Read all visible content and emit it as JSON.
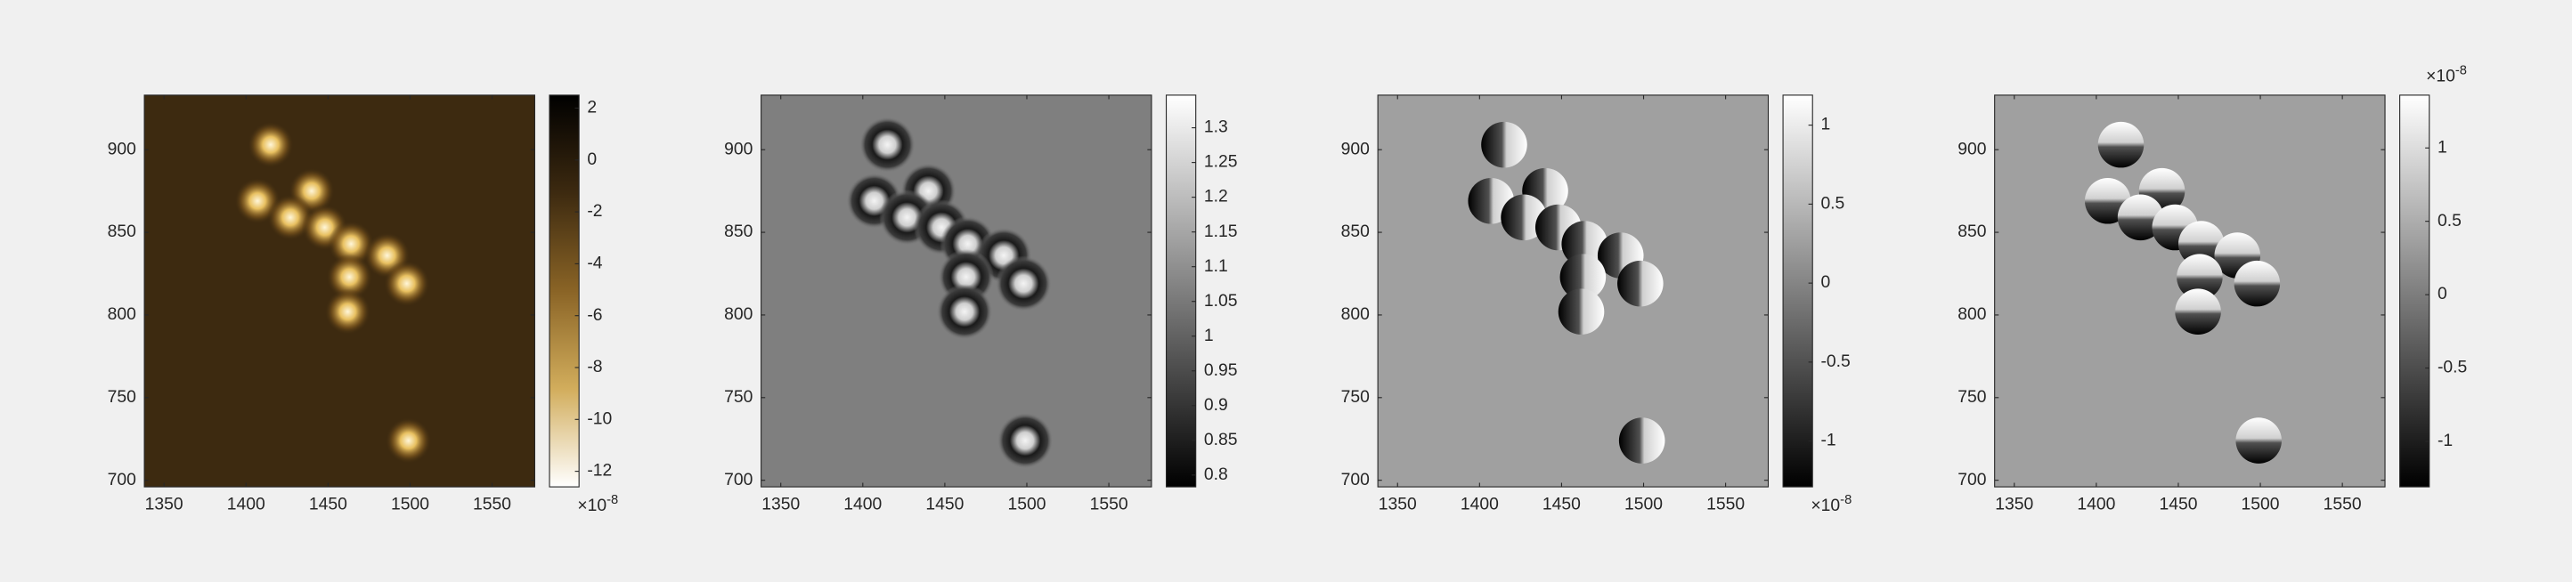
{
  "chart_data": [
    {
      "type": "image",
      "x": [
        1415,
        1440,
        1407,
        1427,
        1448,
        1464,
        1486,
        1498,
        1463,
        1462,
        1499
      ],
      "y": [
        903,
        875,
        869,
        859,
        853,
        843,
        836,
        819,
        823,
        802,
        724
      ],
      "xlim": [
        1338,
        1576
      ],
      "ylim": [
        696,
        933
      ],
      "xticks": [
        1350,
        1400,
        1450,
        1500,
        1550
      ],
      "yticks": [
        700,
        750,
        800,
        850,
        900
      ],
      "clim": [
        -12.6,
        2.5
      ],
      "cticks": [
        -12,
        -10,
        -8,
        -6,
        -4,
        -2,
        0,
        2
      ],
      "colormap": [
        "#ffffff",
        "#d2ad5c",
        "#8a6426",
        "#3d2a10",
        "#000000"
      ],
      "exponent_base": "×10",
      "exponent_power": "-8"
    },
    {
      "type": "image",
      "x": [
        1415,
        1440,
        1407,
        1427,
        1448,
        1464,
        1486,
        1498,
        1463,
        1462,
        1499
      ],
      "y": [
        903,
        875,
        869,
        859,
        853,
        843,
        836,
        819,
        823,
        802,
        724
      ],
      "xlim": [
        1338,
        1576
      ],
      "ylim": [
        696,
        933
      ],
      "xticks": [
        1350,
        1400,
        1450,
        1500,
        1550
      ],
      "yticks": [
        700,
        750,
        800,
        850,
        900
      ],
      "clim": [
        0.783,
        1.347
      ],
      "cticks": [
        0.8,
        0.85,
        0.9,
        0.95,
        1,
        1.05,
        1.1,
        1.15,
        1.2,
        1.25,
        1.3
      ],
      "colormap": [
        "#000000",
        "#ffffff"
      ]
    },
    {
      "type": "image",
      "x": [
        1415,
        1440,
        1407,
        1427,
        1448,
        1464,
        1486,
        1498,
        1463,
        1462,
        1499
      ],
      "y": [
        903,
        875,
        869,
        859,
        853,
        843,
        836,
        819,
        823,
        802,
        724
      ],
      "xlim": [
        1338,
        1576
      ],
      "ylim": [
        696,
        933
      ],
      "xticks": [
        1350,
        1400,
        1450,
        1500,
        1550
      ],
      "yticks": [
        700,
        750,
        800,
        850,
        900
      ],
      "clim": [
        -1.29,
        1.19
      ],
      "cticks": [
        -1,
        -0.5,
        0,
        0.5,
        1
      ],
      "colormap": [
        "#000000",
        "#ffffff"
      ],
      "exponent_base": "×10",
      "exponent_power": "-8"
    },
    {
      "type": "image",
      "x": [
        1415,
        1440,
        1407,
        1427,
        1448,
        1464,
        1486,
        1498,
        1463,
        1462,
        1499
      ],
      "y": [
        903,
        875,
        869,
        859,
        853,
        843,
        836,
        819,
        823,
        802,
        724
      ],
      "xlim": [
        1338,
        1576
      ],
      "ylim": [
        696,
        933
      ],
      "xticks": [
        1350,
        1400,
        1450,
        1500,
        1550
      ],
      "yticks": [
        700,
        750,
        800,
        850,
        900
      ],
      "clim": [
        -1.31,
        1.36
      ],
      "cticks": [
        -1,
        -0.5,
        0,
        0.5,
        1
      ],
      "colormap": [
        "#000000",
        "#ffffff"
      ],
      "exponent_base": "×10",
      "exponent_power": "-8"
    }
  ]
}
